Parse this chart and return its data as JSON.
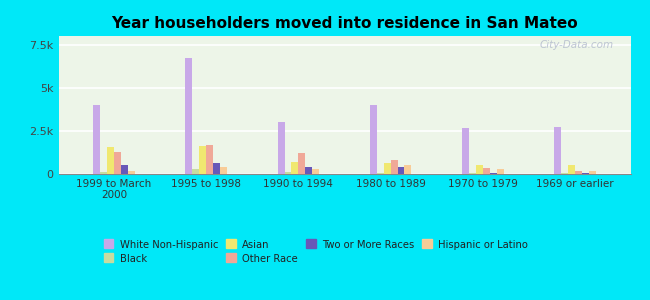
{
  "title": "Year householders moved into residence in San Mateo",
  "categories": [
    "1999 to March\n2000",
    "1995 to 1998",
    "1990 to 1994",
    "1980 to 1989",
    "1970 to 1979",
    "1969 or earlier"
  ],
  "series_order": [
    "White Non-Hispanic",
    "Black",
    "Asian",
    "Other Race",
    "Two or More Races",
    "Hispanic or Latino"
  ],
  "series": {
    "White Non-Hispanic": [
      4000,
      6700,
      3000,
      4000,
      2650,
      2750
    ],
    "Black": [
      100,
      280,
      130,
      80,
      80,
      60
    ],
    "Asian": [
      1550,
      1600,
      700,
      650,
      550,
      500
    ],
    "Other Race": [
      1250,
      1700,
      1200,
      800,
      350,
      150
    ],
    "Two or More Races": [
      550,
      620,
      430,
      400,
      75,
      50
    ],
    "Hispanic or Latino": [
      180,
      380,
      280,
      520,
      300,
      180
    ]
  },
  "colors": {
    "White Non-Hispanic": "#c8a8e8",
    "Black": "#c8dca0",
    "Asian": "#f0e870",
    "Other Race": "#f0a898",
    "Two or More Races": "#6858b8",
    "Hispanic or Latino": "#f8cc98"
  },
  "legend_order": [
    "White Non-Hispanic",
    "Black",
    "Asian",
    "Other Race",
    "Two or More Races",
    "Hispanic or Latino"
  ],
  "ylim": [
    0,
    8000
  ],
  "yticks": [
    0,
    2500,
    5000,
    7500
  ],
  "ytick_labels": [
    "0",
    "2.5k",
    "5k",
    "7.5k"
  ],
  "background_color": "#00e8f8",
  "plot_bg_color": "#edf5e8",
  "watermark": "City-Data.com"
}
